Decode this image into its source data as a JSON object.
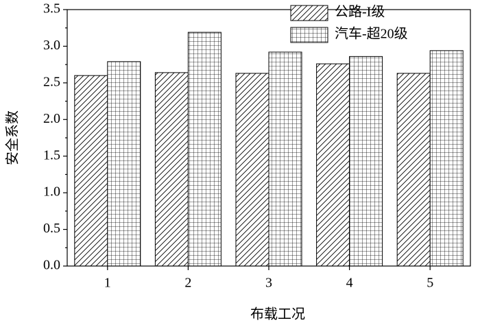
{
  "chart_data": {
    "type": "bar",
    "x_label": "布载工况",
    "y_label": "安全系数",
    "categories": [
      "1",
      "2",
      "3",
      "4",
      "5"
    ],
    "series": [
      {
        "name": "公路-I级",
        "color": "#000000",
        "pattern": "hatch",
        "values": [
          2.6,
          2.64,
          2.63,
          2.76,
          2.63
        ]
      },
      {
        "name": "汽车-超20级",
        "color": "#000000",
        "pattern": "grid",
        "values": [
          2.79,
          3.19,
          2.92,
          2.86,
          2.94
        ]
      }
    ],
    "ylim": [
      0,
      3.5
    ],
    "yticks": [
      {
        "value": 0,
        "label": "0.0"
      },
      0.5,
      {
        "value": 1,
        "label": "1.0"
      },
      1.5,
      {
        "value": 2,
        "label": "2.0"
      },
      2.5,
      {
        "value": 3,
        "label": "3.0"
      },
      3.5
    ],
    "legend": "top"
  }
}
